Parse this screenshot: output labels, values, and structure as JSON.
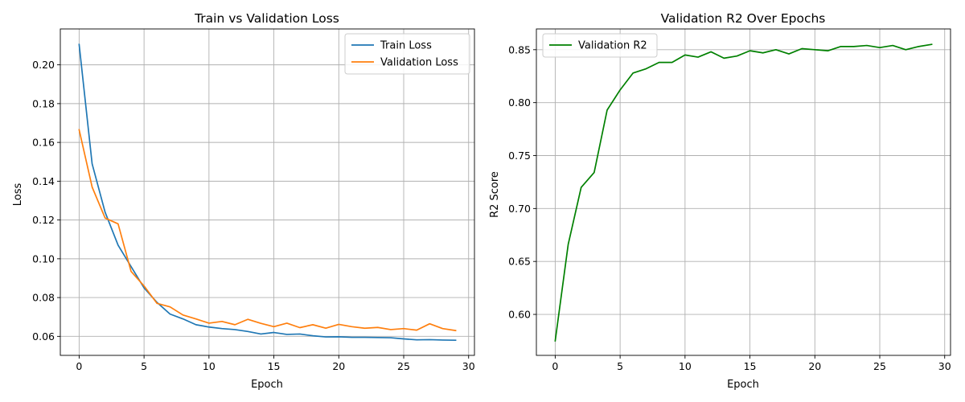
{
  "colors": {
    "train": "#1f77b4",
    "validation": "#ff7f0e",
    "r2": "#008000"
  },
  "chart_data": [
    {
      "type": "line",
      "title": "Train vs Validation Loss",
      "xlabel": "Epoch",
      "ylabel": "Loss",
      "xlim": [
        -1.45,
        30.45
      ],
      "ylim": [
        0.0502,
        0.2185
      ],
      "xticks": [
        0,
        5,
        10,
        15,
        20,
        25,
        30
      ],
      "yticks": [
        0.06,
        0.08,
        0.1,
        0.12,
        0.14,
        0.16,
        0.18,
        0.2
      ],
      "ytick_labels": [
        "0.06",
        "0.08",
        "0.10",
        "0.12",
        "0.14",
        "0.16",
        "0.18",
        "0.20"
      ],
      "grid": true,
      "legend": "top-right",
      "x": [
        0,
        1,
        2,
        3,
        4,
        5,
        6,
        7,
        8,
        9,
        10,
        11,
        12,
        13,
        14,
        15,
        16,
        17,
        18,
        19,
        20,
        21,
        22,
        23,
        24,
        25,
        26,
        27,
        28,
        29
      ],
      "series": [
        {
          "name": "Train Loss",
          "color": "#1f77b4",
          "values": [
            0.2105,
            0.149,
            0.124,
            0.107,
            0.096,
            0.085,
            0.0775,
            0.0715,
            0.069,
            0.066,
            0.0648,
            0.064,
            0.0635,
            0.0625,
            0.0612,
            0.062,
            0.061,
            0.0612,
            0.0603,
            0.0597,
            0.0598,
            0.0595,
            0.0595,
            0.0594,
            0.0593,
            0.0587,
            0.0582,
            0.0583,
            0.0581,
            0.058
          ]
        },
        {
          "name": "Validation Loss",
          "color": "#ff7f0e",
          "values": [
            0.1665,
            0.137,
            0.121,
            0.118,
            0.0935,
            0.086,
            0.077,
            0.0752,
            0.071,
            0.069,
            0.0668,
            0.0677,
            0.066,
            0.0688,
            0.0667,
            0.065,
            0.0668,
            0.0645,
            0.066,
            0.0642,
            0.0662,
            0.065,
            0.0642,
            0.0646,
            0.0635,
            0.064,
            0.0632,
            0.0665,
            0.064,
            0.063
          ]
        }
      ]
    },
    {
      "type": "line",
      "title": "Validation R2 Over Epochs",
      "xlabel": "Epoch",
      "ylabel": "R2 Score",
      "xlim": [
        -1.45,
        30.45
      ],
      "ylim": [
        0.5613,
        0.8696
      ],
      "xticks": [
        0,
        5,
        10,
        15,
        20,
        25,
        30
      ],
      "yticks": [
        0.6,
        0.65,
        0.7,
        0.75,
        0.8,
        0.85
      ],
      "ytick_labels": [
        "0.60",
        "0.65",
        "0.70",
        "0.75",
        "0.80",
        "0.85"
      ],
      "grid": true,
      "legend": "top-left",
      "x": [
        0,
        1,
        2,
        3,
        4,
        5,
        6,
        7,
        8,
        9,
        10,
        11,
        12,
        13,
        14,
        15,
        16,
        17,
        18,
        19,
        20,
        21,
        22,
        23,
        24,
        25,
        26,
        27,
        28,
        29
      ],
      "series": [
        {
          "name": "Validation R2",
          "color": "#008000",
          "values": [
            0.575,
            0.666,
            0.72,
            0.734,
            0.793,
            0.812,
            0.828,
            0.832,
            0.838,
            0.838,
            0.845,
            0.843,
            0.848,
            0.842,
            0.844,
            0.849,
            0.847,
            0.85,
            0.846,
            0.851,
            0.85,
            0.849,
            0.853,
            0.853,
            0.854,
            0.852,
            0.854,
            0.85,
            0.853,
            0.855
          ]
        }
      ]
    }
  ]
}
